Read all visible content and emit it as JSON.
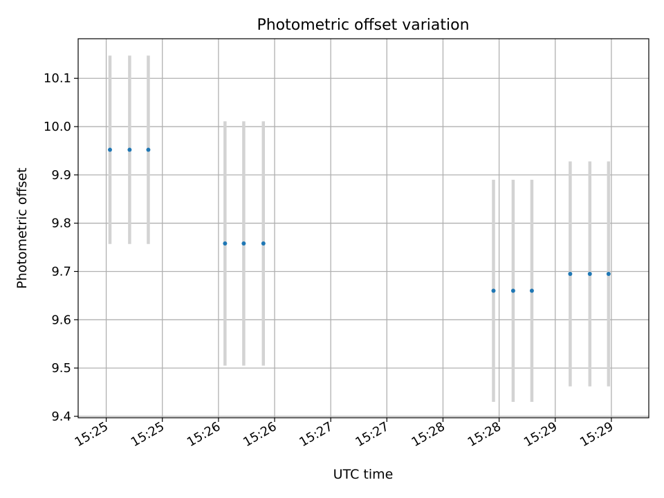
{
  "chart_data": {
    "type": "scatter",
    "title": "Photometric offset variation",
    "xlabel": "UTC time",
    "ylabel": "Photometric offset",
    "grid": true,
    "colors": {
      "points": "#1f77b4",
      "errorbars": "#d3d3d3",
      "grid": "#b0b0b0"
    },
    "x_unit": "seconds after 15:25:00 UTC",
    "xlim": [
      -3,
      58
    ],
    "ylim": [
      9.397,
      10.182
    ],
    "x_ticks": [
      {
        "x": 0,
        "label": "15:25"
      },
      {
        "x": 6,
        "label": "15:25"
      },
      {
        "x": 12,
        "label": "15:26"
      },
      {
        "x": 18,
        "label": "15:26"
      },
      {
        "x": 24,
        "label": "15:27"
      },
      {
        "x": 30,
        "label": "15:27"
      },
      {
        "x": 36,
        "label": "15:28"
      },
      {
        "x": 42,
        "label": "15:28"
      },
      {
        "x": 48,
        "label": "15:29"
      },
      {
        "x": 54,
        "label": "15:29"
      }
    ],
    "y_ticks": [
      9.4,
      9.5,
      9.6,
      9.7,
      9.8,
      9.9,
      10.0,
      10.1
    ],
    "y_tick_labels": [
      "9.4",
      "9.5",
      "9.6",
      "9.7",
      "9.8",
      "9.9",
      "10.0",
      "10.1"
    ],
    "points": [
      {
        "x": 0.4,
        "y": 9.952,
        "err": 0.195
      },
      {
        "x": 2.5,
        "y": 9.952,
        "err": 0.195
      },
      {
        "x": 4.5,
        "y": 9.952,
        "err": 0.195
      },
      {
        "x": 12.7,
        "y": 9.758,
        "err": 0.253
      },
      {
        "x": 14.7,
        "y": 9.758,
        "err": 0.253
      },
      {
        "x": 16.8,
        "y": 9.758,
        "err": 0.253
      },
      {
        "x": 41.4,
        "y": 9.66,
        "err": 0.23
      },
      {
        "x": 43.5,
        "y": 9.66,
        "err": 0.23
      },
      {
        "x": 45.5,
        "y": 9.66,
        "err": 0.23
      },
      {
        "x": 49.6,
        "y": 9.695,
        "err": 0.233
      },
      {
        "x": 51.7,
        "y": 9.695,
        "err": 0.233
      },
      {
        "x": 53.7,
        "y": 9.695,
        "err": 0.233
      }
    ]
  }
}
